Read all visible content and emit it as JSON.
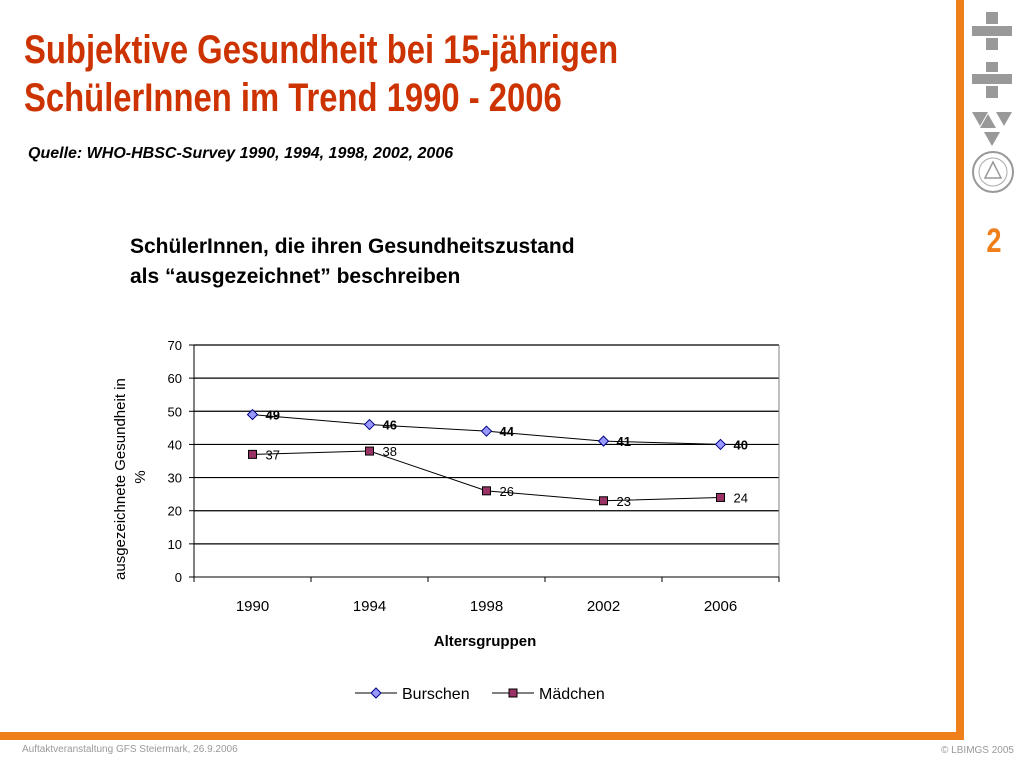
{
  "slide": {
    "title_line1": "Subjektive Gesundheit bei 15-jährigen",
    "title_line2": "SchülerInnen im Trend 1990 - 2006",
    "source": "Quelle: WHO-HBSC-Survey 1990, 1994, 1998, 2002, 2006",
    "page_number": "2",
    "footer_left": "Auftaktveranstaltung GFS Steiermark, 26.9.2006",
    "footer_right": "© LBIMGS 2005",
    "accent_color": "#ee7f1a",
    "title_color": "#cc3300"
  },
  "chart_data": {
    "type": "line",
    "title_line1": "SchülerInnen, die ihren Gesundheitszustand",
    "title_line2": "als “ausgezeichnet” beschreiben",
    "xlabel": "Altersgruppen",
    "ylabel_line1": "ausgezeichnete Gesundheit in",
    "ylabel_line2": "%",
    "categories": [
      "1990",
      "1994",
      "1998",
      "2002",
      "2006"
    ],
    "ylim": [
      0,
      70
    ],
    "yticks": [
      0,
      10,
      20,
      30,
      40,
      50,
      60,
      70
    ],
    "grid": true,
    "legend_position": "bottom",
    "series": [
      {
        "name": "Burschen",
        "values": [
          49,
          46,
          44,
          41,
          40
        ],
        "labels": [
          "49",
          "46",
          "44",
          "41",
          "40"
        ],
        "marker": "diamond",
        "marker_color": "#9999ff",
        "label_bold": true
      },
      {
        "name": "Mädchen",
        "values": [
          37,
          38,
          26,
          23,
          24
        ],
        "labels": [
          "37",
          "38",
          "26",
          "23",
          "24"
        ],
        "marker": "square",
        "marker_color": "#993366",
        "label_bold": false
      }
    ]
  }
}
